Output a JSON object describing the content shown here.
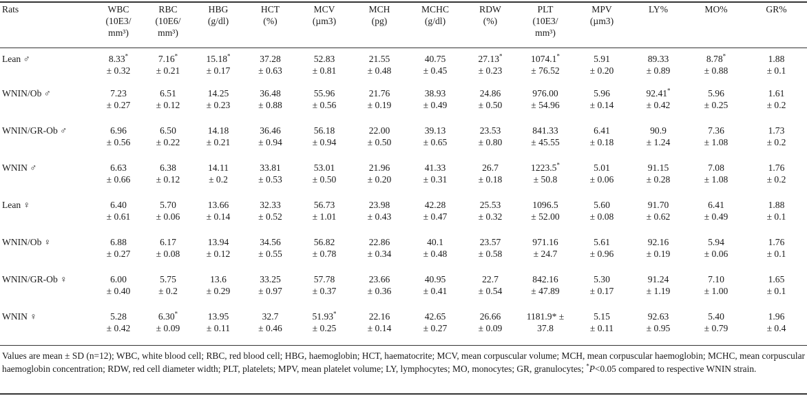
{
  "table": {
    "row_header": "Rats",
    "columns": [
      {
        "id": "WBC",
        "lines": [
          "WBC",
          "(10E3/",
          "mm³)"
        ]
      },
      {
        "id": "RBC",
        "lines": [
          "RBC",
          "(10E6/",
          "mm³)"
        ]
      },
      {
        "id": "HBG",
        "lines": [
          "HBG",
          "(g/dl)"
        ]
      },
      {
        "id": "HCT",
        "lines": [
          "HCT",
          "(%)"
        ]
      },
      {
        "id": "MCV",
        "lines": [
          "MCV",
          "(µm3)"
        ]
      },
      {
        "id": "MCH",
        "lines": [
          "MCH",
          "(pg)"
        ]
      },
      {
        "id": "MCHC",
        "lines": [
          "MCHC",
          "(g/dl)"
        ]
      },
      {
        "id": "RDW",
        "lines": [
          "RDW",
          "(%)"
        ]
      },
      {
        "id": "PLT",
        "lines": [
          "PLT",
          "(10E3/",
          "mm³)"
        ]
      },
      {
        "id": "MPV",
        "lines": [
          "MPV",
          "(µm3)"
        ]
      },
      {
        "id": "LY",
        "lines": [
          "LY%"
        ]
      },
      {
        "id": "MO",
        "lines": [
          "MO%"
        ]
      },
      {
        "id": "GR",
        "lines": [
          "GR%"
        ]
      }
    ],
    "rows": [
      {
        "label": "Lean ♂",
        "cells": [
          {
            "mean": "8.33",
            "star": "*",
            "sd": "± 0.32"
          },
          {
            "mean": "7.16",
            "star": "*",
            "sd": "± 0.21"
          },
          {
            "mean": "15.18",
            "star": "*",
            "sd": "± 0.17"
          },
          {
            "mean": "37.28",
            "star": "",
            "sd": "± 0.63"
          },
          {
            "mean": "52.83",
            "star": "",
            "sd": "± 0.81"
          },
          {
            "mean": "21.55",
            "star": "",
            "sd": "± 0.48"
          },
          {
            "mean": "40.75",
            "star": "",
            "sd": "± 0.45"
          },
          {
            "mean": "27.13",
            "star": "*",
            "sd": "± 0.23"
          },
          {
            "mean": "1074.1",
            "star": "*",
            "sd": "± 76.52"
          },
          {
            "mean": "5.91",
            "star": "",
            "sd": "± 0.20"
          },
          {
            "mean": "89.33",
            "star": "",
            "sd": "± 0.89"
          },
          {
            "mean": "8.78",
            "star": "*",
            "sd": "± 0.88"
          },
          {
            "mean": "1.88",
            "star": "",
            "sd": "± 0.1"
          }
        ]
      },
      {
        "label": "WNIN/Ob ♂",
        "cells": [
          {
            "mean": "7.23",
            "star": "",
            "sd": "± 0.27"
          },
          {
            "mean": "6.51",
            "star": "",
            "sd": "± 0.12"
          },
          {
            "mean": "14.25",
            "star": "",
            "sd": "± 0.23"
          },
          {
            "mean": "36.48",
            "star": "",
            "sd": "± 0.88"
          },
          {
            "mean": "55.96",
            "star": "",
            "sd": "± 0.56"
          },
          {
            "mean": "21.76",
            "star": "",
            "sd": "± 0.19"
          },
          {
            "mean": "38.93",
            "star": "",
            "sd": "± 0.49"
          },
          {
            "mean": "24.86",
            "star": "",
            "sd": "± 0.50"
          },
          {
            "mean": "976.00",
            "star": "",
            "sd": "± 54.96"
          },
          {
            "mean": "5.96",
            "star": "",
            "sd": "± 0.14"
          },
          {
            "mean": "92.41",
            "star": "*",
            "sd": "± 0.42"
          },
          {
            "mean": "5.96",
            "star": "",
            "sd": "± 0.25"
          },
          {
            "mean": "1.61",
            "star": "",
            "sd": "± 0.2"
          }
        ]
      },
      {
        "label": "WNIN/GR-Ob ♂",
        "cells": [
          {
            "mean": "6.96",
            "star": "",
            "sd": "± 0.56"
          },
          {
            "mean": "6.50",
            "star": "",
            "sd": "± 0.22"
          },
          {
            "mean": "14.18",
            "star": "",
            "sd": "± 0.21"
          },
          {
            "mean": "36.46",
            "star": "",
            "sd": "± 0.94"
          },
          {
            "mean": "56.18",
            "star": "",
            "sd": "± 0.94"
          },
          {
            "mean": "22.00",
            "star": "",
            "sd": "± 0.50"
          },
          {
            "mean": "39.13",
            "star": "",
            "sd": "± 0.65"
          },
          {
            "mean": "23.53",
            "star": "",
            "sd": "± 0.80"
          },
          {
            "mean": "841.33",
            "star": "",
            "sd": "± 45.55"
          },
          {
            "mean": "6.41",
            "star": "",
            "sd": "± 0.18"
          },
          {
            "mean": "90.9",
            "star": "",
            "sd": "± 1.24"
          },
          {
            "mean": "7.36",
            "star": "",
            "sd": "± 1.08"
          },
          {
            "mean": "1.73",
            "star": "",
            "sd": "± 0.2"
          }
        ]
      },
      {
        "label": "WNIN ♂",
        "cells": [
          {
            "mean": "6.63",
            "star": "",
            "sd": "± 0.66"
          },
          {
            "mean": "6.38",
            "star": "",
            "sd": "± 0.12"
          },
          {
            "mean": "14.11",
            "star": "",
            "sd": "± 0.2"
          },
          {
            "mean": "33.81",
            "star": "",
            "sd": "± 0.53"
          },
          {
            "mean": "53.01",
            "star": "",
            "sd": "± 0.50"
          },
          {
            "mean": "21.96",
            "star": "",
            "sd": "± 0.20"
          },
          {
            "mean": "41.33",
            "star": "",
            "sd": "± 0.31"
          },
          {
            "mean": "26.7",
            "star": "",
            "sd": "± 0.18"
          },
          {
            "mean": "1223.5",
            "star": "*",
            "sd": "± 50.8"
          },
          {
            "mean": "5.01",
            "star": "",
            "sd": "± 0.06"
          },
          {
            "mean": "91.15",
            "star": "",
            "sd": "± 0.28"
          },
          {
            "mean": "7.08",
            "star": "",
            "sd": "± 1.08"
          },
          {
            "mean": "1.76",
            "star": "",
            "sd": "± 0.2"
          }
        ]
      },
      {
        "label": "Lean ♀",
        "cells": [
          {
            "mean": "6.40",
            "star": "",
            "sd": "± 0.61"
          },
          {
            "mean": "5.70",
            "star": "",
            "sd": "± 0.06"
          },
          {
            "mean": "13.66",
            "star": "",
            "sd": "± 0.14"
          },
          {
            "mean": "32.33",
            "star": "",
            "sd": "± 0.52"
          },
          {
            "mean": "56.73",
            "star": "",
            "sd": "± 1.01"
          },
          {
            "mean": "23.98",
            "star": "",
            "sd": "± 0.43"
          },
          {
            "mean": "42.28",
            "star": "",
            "sd": "± 0.47"
          },
          {
            "mean": "25.53",
            "star": "",
            "sd": "± 0.32"
          },
          {
            "mean": "1096.5",
            "star": "",
            "sd": "± 52.00"
          },
          {
            "mean": "5.60",
            "star": "",
            "sd": "± 0.08"
          },
          {
            "mean": "91.70",
            "star": "",
            "sd": "± 0.62"
          },
          {
            "mean": "6.41",
            "star": "",
            "sd": "± 0.49"
          },
          {
            "mean": "1.88",
            "star": "",
            "sd": "± 0.1"
          }
        ]
      },
      {
        "label": "WNIN/Ob ♀",
        "cells": [
          {
            "mean": "6.88",
            "star": "",
            "sd": "± 0.27"
          },
          {
            "mean": "6.17",
            "star": "",
            "sd": "± 0.08"
          },
          {
            "mean": "13.94",
            "star": "",
            "sd": "± 0.12"
          },
          {
            "mean": "34.56",
            "star": "",
            "sd": "± 0.55"
          },
          {
            "mean": "56.82",
            "star": "",
            "sd": "± 0.78"
          },
          {
            "mean": "22.86",
            "star": "",
            "sd": "± 0.34"
          },
          {
            "mean": "40.1",
            "star": "",
            "sd": "± 0.48"
          },
          {
            "mean": "23.57",
            "star": "",
            "sd": "± 0.58"
          },
          {
            "mean": "971.16",
            "star": "",
            "sd": "± 24.7"
          },
          {
            "mean": "5.61",
            "star": "",
            "sd": "± 0.96"
          },
          {
            "mean": "92.16",
            "star": "",
            "sd": "± 0.19"
          },
          {
            "mean": "5.94",
            "star": "",
            "sd": "± 0.06"
          },
          {
            "mean": "1.76",
            "star": "",
            "sd": "± 0.1"
          }
        ]
      },
      {
        "label": "WNIN/GR-Ob ♀",
        "cells": [
          {
            "mean": "6.00",
            "star": "",
            "sd": "± 0.40"
          },
          {
            "mean": "5.75",
            "star": "",
            "sd": "± 0.2"
          },
          {
            "mean": "13.6",
            "star": "",
            "sd": "± 0.29"
          },
          {
            "mean": "33.25",
            "star": "",
            "sd": "± 0.97"
          },
          {
            "mean": "57.78",
            "star": "",
            "sd": "± 0.37"
          },
          {
            "mean": "23.66",
            "star": "",
            "sd": "± 0.36"
          },
          {
            "mean": "40.95",
            "star": "",
            "sd": "± 0.41"
          },
          {
            "mean": "22.7",
            "star": "",
            "sd": "± 0.54"
          },
          {
            "mean": "842.16",
            "star": "",
            "sd": "± 47.89"
          },
          {
            "mean": "5.30",
            "star": "",
            "sd": "± 0.17"
          },
          {
            "mean": "91.24",
            "star": "",
            "sd": "± 1.19"
          },
          {
            "mean": "7.10",
            "star": "",
            "sd": "± 1.00"
          },
          {
            "mean": "1.65",
            "star": "",
            "sd": "± 0.1"
          }
        ]
      },
      {
        "label": "WNIN ♀",
        "cells": [
          {
            "mean": "5.28",
            "star": "",
            "sd": "± 0.42"
          },
          {
            "mean": "6.30",
            "star": "*",
            "sd": "± 0.09"
          },
          {
            "mean": "13.95",
            "star": "",
            "sd": "± 0.11"
          },
          {
            "mean": "32.7",
            "star": "",
            "sd": "± 0.46"
          },
          {
            "mean": "51.93",
            "star": "*",
            "sd": "± 0.25"
          },
          {
            "mean": "22.16",
            "star": "",
            "sd": "± 0.14"
          },
          {
            "mean": "42.65",
            "star": "",
            "sd": "± 0.27"
          },
          {
            "mean": "26.66",
            "star": "",
            "sd": "± 0.09"
          },
          {
            "mean": "1181.9",
            "star": "* ±",
            "sd": "37.8"
          },
          {
            "mean": "5.15",
            "star": "",
            "sd": "± 0.11"
          },
          {
            "mean": "92.63",
            "star": "",
            "sd": "± 0.95"
          },
          {
            "mean": "5.40",
            "star": "",
            "sd": "± 0.79"
          },
          {
            "mean": "1.96",
            "star": "",
            "sd": "± 0.4"
          }
        ]
      }
    ]
  },
  "footnote": {
    "main": "Values are mean ±  SD (n=12); WBC, white blood cell; RBC, red blood cell; HBG, haemoglobin; HCT, haematocrite; MCV,  mean corpuscular volume; MCH,  mean corpuscular haemoglobin; MCHC, mean corpuscular haemoglobin concentration; RDW, red cell diameter width;  PLT, platelets; MPV, mean platelet volume; LY, lymphocytes; MO, monocytes; GR, granulocytes; ",
    "star": "*",
    "p_letter": "P",
    "tail": "<0.05 compared to respective WNIN strain."
  }
}
